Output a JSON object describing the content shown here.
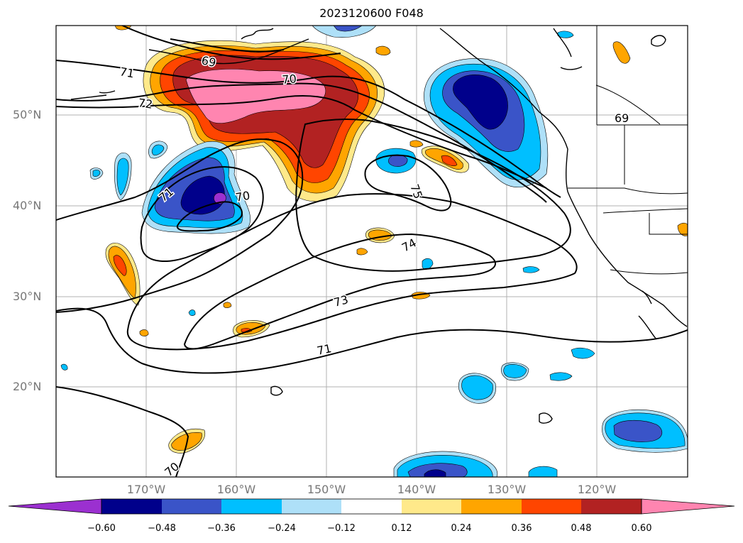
{
  "title": "2023120600 F048",
  "map": {
    "lat_labels": [
      "50°N",
      "40°N",
      "30°N",
      "20°N"
    ],
    "lon_labels": [
      "170°W",
      "160°W",
      "150°W",
      "140°W",
      "130°W",
      "120°W"
    ],
    "contour_labels": [
      "69",
      "70",
      "71",
      "72",
      "71",
      "70",
      "75",
      "74",
      "73",
      "71",
      "70",
      "69"
    ]
  },
  "colorbar": {
    "ticks": [
      "−0.60",
      "−0.48",
      "−0.36",
      "−0.24",
      "−0.12",
      "0.12",
      "0.24",
      "0.36",
      "0.48",
      "0.60"
    ],
    "colors": [
      "#9b30d0",
      "#00008b",
      "#3a54c8",
      "#00bfff",
      "#aee0f8",
      "#ffffff",
      "#ffe98a",
      "#ffa500",
      "#ff4500",
      "#b22222",
      "#ff85b0"
    ]
  }
}
